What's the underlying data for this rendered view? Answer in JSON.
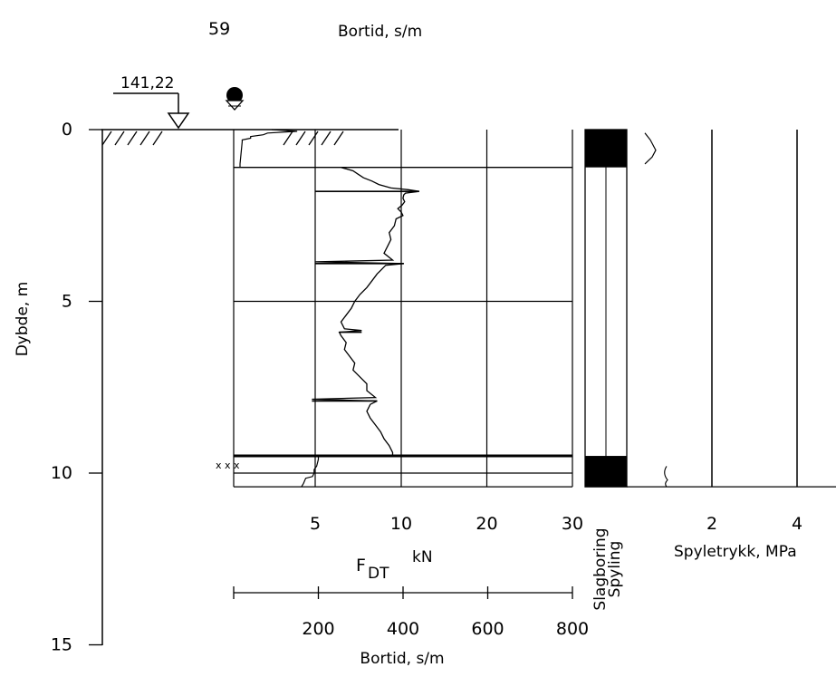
{
  "header": {
    "probe_id": "59",
    "top_label": "Bortid, s/m"
  },
  "elevation": "141,22",
  "groundwater_symbol": "groundwater-symbol-icon",
  "chart_data": {
    "type": "line",
    "title": "",
    "ylabel": "Dybde, m",
    "depth_ticks": [
      "0",
      "5",
      "10",
      "15"
    ],
    "depth_range": [
      0,
      15
    ],
    "force_axis": {
      "label_main": "F",
      "label_sub": "DT",
      "label_unit": "kN",
      "ticks": [
        "5",
        "10",
        "20",
        "30"
      ],
      "tick_values": [
        5,
        10,
        20,
        30
      ]
    },
    "time_axis": {
      "label": "Bortid, s/m",
      "ticks": [
        "200",
        "400",
        "600",
        "800"
      ],
      "tick_values": [
        200,
        400,
        600,
        800
      ]
    },
    "pressure_axis": {
      "label": "Spyletrykk, MPa",
      "ticks": [
        "2",
        "4"
      ],
      "tick_values": [
        2,
        4
      ]
    },
    "method_labels": [
      "Slagboring",
      "Spyling"
    ],
    "layer_boundaries_m": [
      1.1,
      9.5,
      10.4
    ],
    "sample_marks": "x x x",
    "force_profile": {
      "name": "",
      "depth": [
        1.1,
        1.2,
        1.3,
        1.4,
        1.5,
        1.6,
        1.7,
        1.75,
        1.8,
        1.85,
        1.9,
        2.0,
        2.1,
        2.2,
        2.3,
        2.4,
        2.5,
        2.6,
        2.8,
        3.0,
        3.2,
        3.4,
        3.6,
        3.8,
        3.85,
        3.9,
        3.95,
        4.0,
        4.1,
        4.2,
        4.4,
        4.6,
        4.8,
        5.0,
        5.2,
        5.4,
        5.6,
        5.8,
        5.85,
        5.9,
        6.0,
        6.2,
        6.4,
        6.6,
        6.8,
        7.0,
        7.2,
        7.4,
        7.6,
        7.8,
        7.85,
        7.9,
        8.0,
        8.2,
        8.4,
        8.6,
        8.8,
        9.0,
        9.2,
        9.4,
        9.5
      ],
      "value_kN": [
        6.5,
        7.2,
        7.5,
        7.8,
        8.3,
        8.7,
        9.4,
        10.8,
        12.1,
        10.5,
        10.3,
        10.2,
        10.4,
        10.1,
        9.8,
        10.0,
        10.2,
        9.7,
        9.6,
        9.3,
        9.4,
        9.2,
        9.0,
        9.5,
        5.0,
        10.3,
        9.1,
        9.0,
        8.8,
        8.6,
        8.3,
        8.0,
        7.6,
        7.3,
        7.1,
        6.8,
        6.5,
        6.7,
        7.7,
        6.4,
        6.5,
        6.8,
        6.7,
        7.0,
        7.3,
        7.2,
        7.6,
        8.0,
        8.0,
        8.5,
        4.8,
        8.6,
        8.2,
        8.0,
        8.2,
        8.5,
        8.8,
        9.0,
        9.3,
        9.5,
        9.5
      ],
      "spikes": [
        {
          "depth": 1.8,
          "from_kN": 5.0,
          "to_kN": 12.1
        },
        {
          "depth": 3.9,
          "from_kN": 5.0,
          "to_kN": 10.3
        },
        {
          "depth": 5.9,
          "from_kN": 6.4,
          "to_kN": 7.7
        },
        {
          "depth": 7.9,
          "from_kN": 4.8,
          "to_kN": 8.6
        }
      ]
    },
    "time_profile_top": {
      "depth": [
        0,
        0.05,
        0.1,
        0.15,
        0.2,
        0.25,
        0.3,
        0.35,
        1.0,
        1.1
      ],
      "value_s_per_m": [
        90,
        150,
        80,
        70,
        40,
        40,
        20,
        20,
        15,
        15
      ]
    },
    "time_profile_bottom": {
      "depth": [
        9.5,
        9.6,
        9.8,
        9.9,
        10.0,
        10.1,
        10.15,
        10.3,
        10.4
      ],
      "value_s_per_m": [
        200,
        200,
        196,
        190,
        190,
        186,
        170,
        165,
        160
      ]
    },
    "pressure_profile": {
      "depth": [
        0.1,
        0.3,
        0.6,
        0.8,
        0.9,
        1.0
      ],
      "value_MPa": [
        0.0,
        0.15,
        0.3,
        0.2,
        0.1,
        0.0
      ]
    },
    "method_column": {
      "slagboring_depth_ranges": [
        [
          0,
          1.1
        ],
        [
          9.5,
          10.4
        ]
      ]
    }
  }
}
